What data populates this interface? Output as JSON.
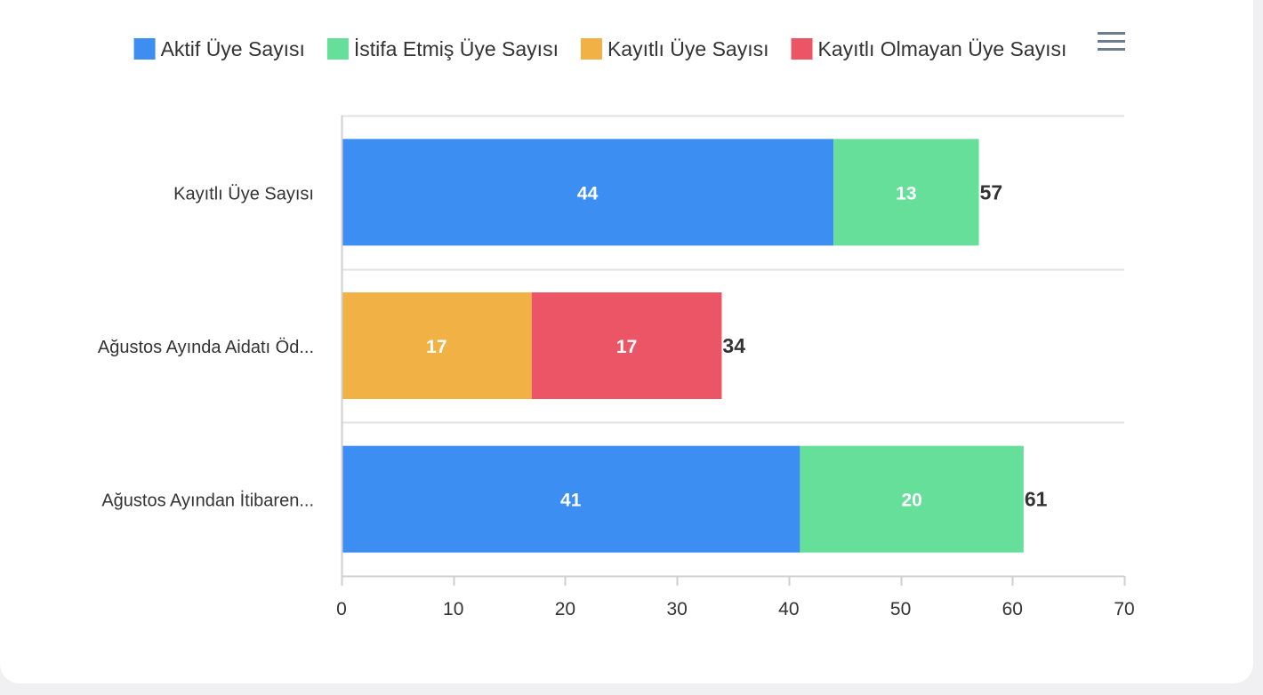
{
  "chart_data": {
    "type": "bar",
    "orientation": "horizontal",
    "stacked": true,
    "categories": [
      "Kayıtlı Üye Sayısı",
      "Ağustos Ayında Aidatı Öd...",
      "Ağustos Ayından İtibaren..."
    ],
    "series": [
      {
        "name": "Aktif Üye Sayısı",
        "color": "#3d8ef3",
        "values": [
          44,
          null,
          41
        ]
      },
      {
        "name": "İstifa Etmiş Üye Sayısı",
        "color": "#66df9a",
        "values": [
          13,
          null,
          20
        ]
      },
      {
        "name": "Kayıtlı Üye Sayısı",
        "color": "#f2b144",
        "values": [
          null,
          17,
          null
        ]
      },
      {
        "name": "Kayıtlı Olmayan Üye Sayısı",
        "color": "#ec5566",
        "values": [
          null,
          17,
          null
        ]
      }
    ],
    "totals": [
      57,
      34,
      61
    ],
    "xlim": [
      0,
      70
    ],
    "xticks": [
      0,
      10,
      20,
      30,
      40,
      50,
      60,
      70
    ],
    "legend_position": "top",
    "grid": true,
    "data_labels": true
  },
  "menu_icon": "hamburger-menu-icon"
}
